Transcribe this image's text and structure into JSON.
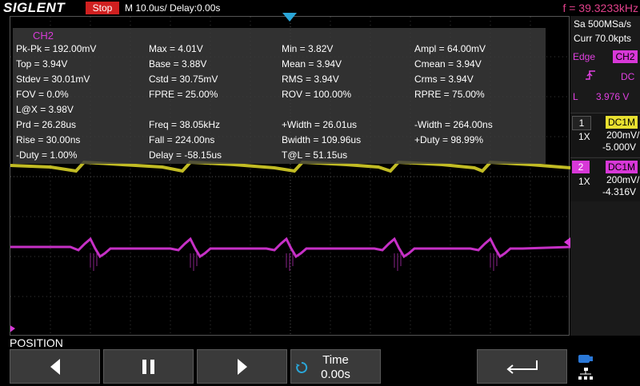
{
  "header": {
    "brand": "SIGLENT",
    "run_state": "Stop",
    "timebase": "M 10.0us/  Delay:0.00s",
    "frequency": "f = 39.3233kHz"
  },
  "measurements": {
    "title": "CH2",
    "rows": [
      [
        "Pk-Pk = 192.00mV",
        "Max = 4.01V",
        "Min = 3.82V",
        "Ampl = 64.00mV"
      ],
      [
        "Top = 3.94V",
        "Base = 3.88V",
        "Mean = 3.94V",
        "Cmean = 3.94V"
      ],
      [
        "Stdev = 30.01mV",
        "Cstd = 30.75mV",
        "RMS = 3.94V",
        "Crms = 3.94V"
      ],
      [
        "FOV = 0.0%",
        "FPRE = 25.00%",
        "ROV = 100.00%",
        "RPRE = 75.00%"
      ],
      [
        "L@X = 3.98V",
        "",
        "",
        ""
      ],
      [
        "Prd = 26.28us",
        "Freq = 38.05kHz",
        "+Width = 26.01us",
        "-Width = 264.00ns"
      ],
      [
        "Rise = 30.00ns",
        "Fall = 224.00ns",
        "Bwidth = 109.96us",
        "+Duty = 98.99%"
      ],
      [
        "-Duty = 1.00%",
        "Delay = -58.15us",
        "T@L = 51.15us",
        ""
      ]
    ]
  },
  "acquisition": {
    "sample_rate": "Sa 500MSa/s",
    "memory": "Curr 70.0kpts"
  },
  "trigger": {
    "type": "Edge",
    "source": "CH2",
    "coupling": "DC",
    "level_label": "L",
    "level": "3.976 V"
  },
  "channels": [
    {
      "num": "1",
      "coupling": "DC1M",
      "probe": "1X",
      "scale": "200mV/",
      "offset": "-5.000V",
      "color": "#e8e030"
    },
    {
      "num": "2",
      "coupling": "DC1M",
      "probe": "1X",
      "scale": "200mV/",
      "offset": "-4.316V",
      "color": "#d838d8"
    }
  ],
  "softkeys": {
    "menu_title": "POSITION",
    "time_label": "Time",
    "time_value": "0.00s"
  },
  "colors": {
    "ch1": "#e8e030",
    "ch2": "#d838d8",
    "accent_blue": "#2aa6d8",
    "stop_red": "#d02020",
    "freq_pink": "#e0408a"
  }
}
